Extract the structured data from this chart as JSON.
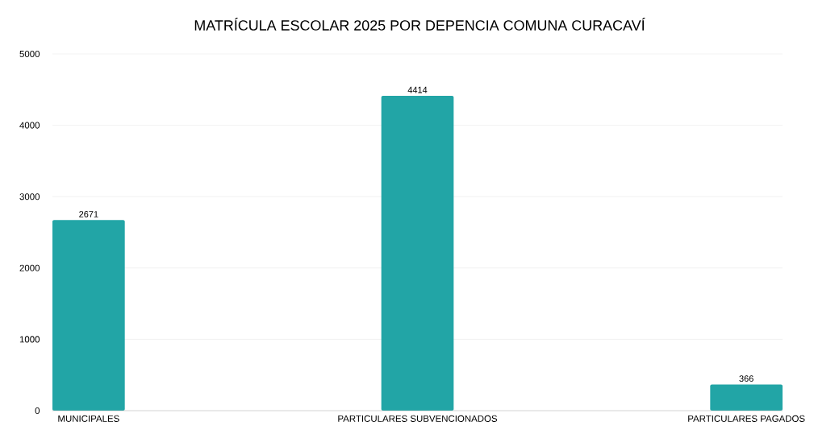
{
  "chart_data": {
    "type": "bar",
    "title": "MATRÍCULA ESCOLAR 2025 POR DEPENCIA COMUNA CURACAVÍ",
    "categories": [
      "MUNICIPALES",
      "PARTICULARES SUBVENCIONADOS",
      "PARTICULARES PAGADOS"
    ],
    "values": [
      2671,
      4414,
      366
    ],
    "color": "#22a5a6",
    "ylim": [
      0,
      5000
    ],
    "yticks": [
      0,
      1000,
      2000,
      3000,
      4000,
      5000
    ],
    "grid": "y",
    "data_labels": true
  }
}
